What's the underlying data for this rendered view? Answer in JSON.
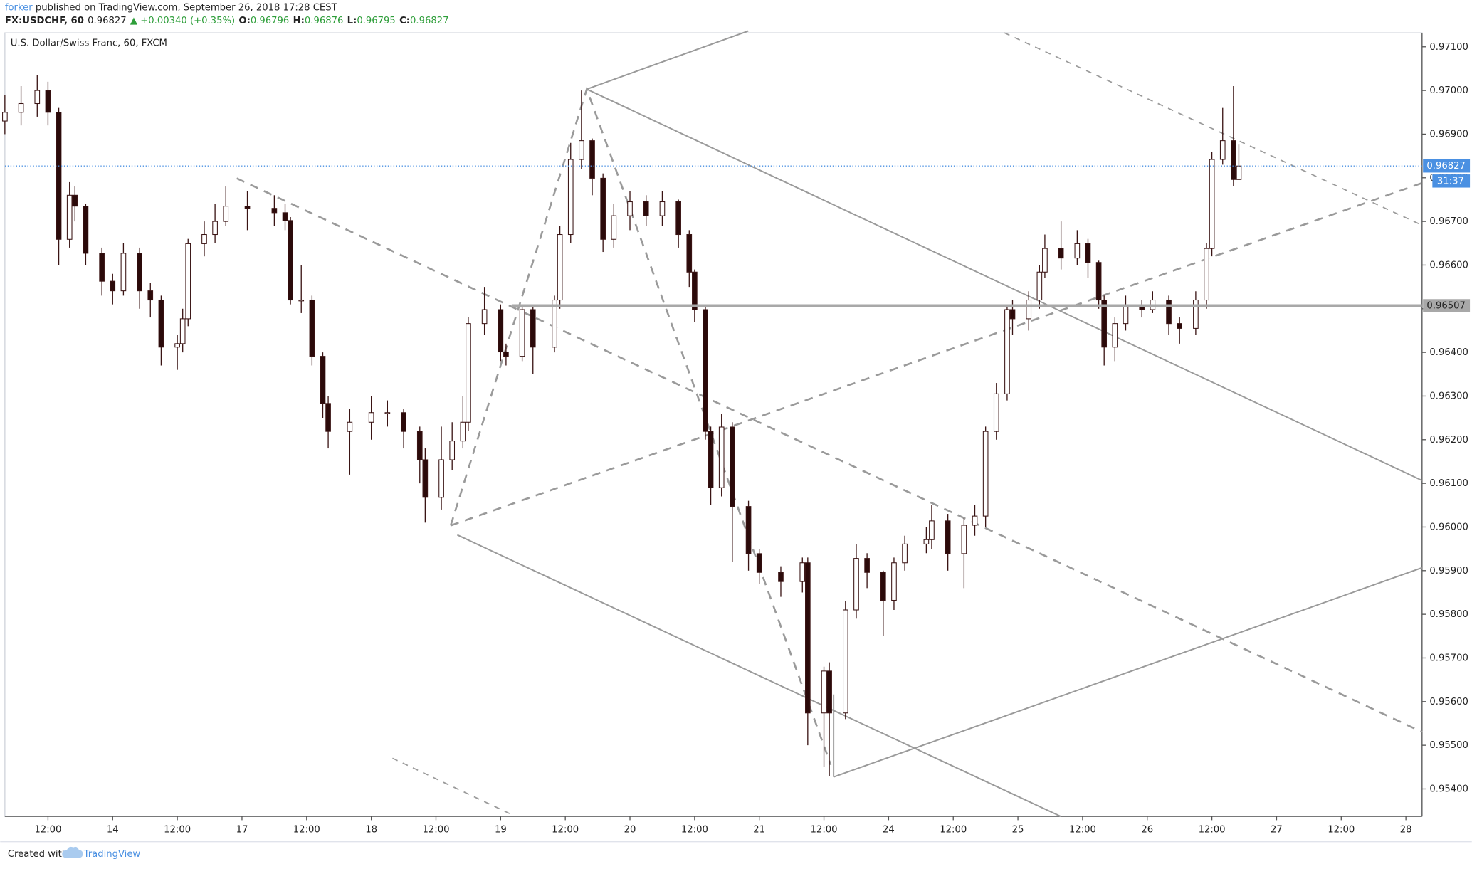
{
  "header": {
    "author": "forker",
    "published": " published on TradingView.com, September 26, 2018 17:28 CEST",
    "symbol": "FX:USDCHF, 60",
    "last": "0.96827",
    "change": "▲ +0.00340 (+0.35%)",
    "o_label": "O:",
    "o_value": "0.96796",
    "h_label": "H:",
    "h_value": "0.96876",
    "l_label": "L:",
    "l_value": "0.96795",
    "c_label": "C:",
    "c_value": "0.96827"
  },
  "footer": {
    "created": "Created with",
    "brand": "TradingView"
  },
  "chart_data": {
    "type": "candlestick",
    "title": "U.S. Dollar/Swiss Franc, 60, FXCM",
    "x": [
      4,
      7,
      10,
      12,
      14,
      16,
      17,
      19,
      22,
      24,
      26,
      29,
      31,
      33,
      36,
      37,
      38,
      41,
      43,
      45,
      49,
      54,
      56,
      57,
      59,
      61,
      63,
      64,
      68,
      72,
      75,
      78,
      81,
      82,
      85,
      87,
      89,
      90,
      93,
      96,
      97,
      100,
      102,
      106,
      107,
      109,
      111,
      113,
      115,
      117,
      120,
      123,
      126,
      129,
      131,
      132,
      134,
      135,
      137,
      139,
      142,
      144,
      148,
      152,
      153,
      156,
      157,
      160,
      162,
      164,
      167,
      169,
      171,
      175,
      176,
      179,
      182,
      184,
      186,
      188,
      190,
      191,
      194,
      196,
      197,
      200,
      203,
      205,
      207,
      208,
      210,
      212,
      215,
      217,
      220,
      222,
      225,
      227,
      228,
      230,
      232,
      233
    ],
    "open": [
      0.9693,
      0.9695,
      0.9697,
      0.97,
      0.9695,
      0.96659,
      0.9676,
      0.96735,
      0.96627,
      0.96563,
      0.96541,
      0.96627,
      0.96541,
      0.9652,
      0.96412,
      0.9642,
      0.96477,
      0.96649,
      0.9667,
      0.967,
      0.96735,
      0.9673,
      0.9672,
      0.96702,
      0.9652,
      0.9652,
      0.96391,
      0.96283,
      0.96219,
      0.9624,
      0.96262,
      0.96262,
      0.96219,
      0.96154,
      0.96068,
      0.96154,
      0.96197,
      0.9624,
      0.96466,
      0.96498,
      0.96401,
      0.96391,
      0.96498,
      0.96412,
      0.9652,
      0.9667,
      0.96842,
      0.96885,
      0.96799,
      0.96659,
      0.96713,
      0.96745,
      0.96713,
      0.96745,
      0.9667,
      0.96584,
      0.96498,
      0.96219,
      0.9609,
      0.96229,
      0.96047,
      0.95939,
      0.95896,
      0.95875,
      0.95918,
      0.95574,
      0.9567,
      0.95574,
      0.9581,
      0.95928,
      0.95896,
      0.95832,
      0.95918,
      0.95961,
      0.95971,
      0.96014,
      0.95939,
      0.96004,
      0.96025,
      0.96219,
      0.96305,
      0.96498,
      0.96477,
      0.9652,
      0.96584,
      0.96638,
      0.96616,
      0.96649,
      0.96606,
      0.9652,
      0.96412,
      0.96466,
      0.96509,
      0.96498,
      0.9652,
      0.96466,
      0.96455,
      0.9652,
      0.96638,
      0.96842,
      0.96885,
      0.96796
    ],
    "high": [
      0.9699,
      0.9701,
      0.97036,
      0.9702,
      0.9696,
      0.9679,
      0.9678,
      0.9674,
      0.9664,
      0.9658,
      0.9665,
      0.9664,
      0.9656,
      0.9653,
      0.9644,
      0.965,
      0.9666,
      0.967,
      0.9674,
      0.9678,
      0.9677,
      0.9676,
      0.9674,
      0.9671,
      0.966,
      0.9653,
      0.964,
      0.963,
      0.9627,
      0.963,
      0.9629,
      0.9627,
      0.9623,
      0.9618,
      0.9623,
      0.9624,
      0.963,
      0.9648,
      0.9655,
      0.9651,
      0.9642,
      0.9651,
      0.9651,
      0.9653,
      0.9669,
      0.9688,
      0.97,
      0.9689,
      0.9681,
      0.9674,
      0.9677,
      0.9676,
      0.9677,
      0.9675,
      0.9668,
      0.9659,
      0.9651,
      0.9623,
      0.9626,
      0.9624,
      0.9606,
      0.9595,
      0.9591,
      0.9593,
      0.9593,
      0.9568,
      0.9569,
      0.9583,
      0.9596,
      0.9594,
      0.959,
      0.9593,
      0.9598,
      0.96,
      0.9605,
      0.9603,
      0.9602,
      0.9605,
      0.9623,
      0.9633,
      0.9651,
      0.9652,
      0.9654,
      0.966,
      0.9667,
      0.967,
      0.9668,
      0.9666,
      0.9661,
      0.9653,
      0.9648,
      0.9653,
      0.9652,
      0.9654,
      0.9653,
      0.9648,
      0.9654,
      0.9665,
      0.9686,
      0.9696,
      0.9701,
      0.96876
    ],
    "low": [
      0.969,
      0.9692,
      0.9694,
      0.9692,
      0.966,
      0.9664,
      0.967,
      0.966,
      0.9653,
      0.9651,
      0.9653,
      0.965,
      0.9648,
      0.9637,
      0.9636,
      0.964,
      0.9646,
      0.9662,
      0.9665,
      0.9669,
      0.9668,
      0.9669,
      0.9668,
      0.9651,
      0.9649,
      0.9637,
      0.9625,
      0.9618,
      0.9612,
      0.962,
      0.9623,
      0.9618,
      0.961,
      0.9601,
      0.9604,
      0.9613,
      0.9618,
      0.9622,
      0.9644,
      0.9638,
      0.9637,
      0.9638,
      0.9635,
      0.964,
      0.965,
      0.9665,
      0.9682,
      0.9676,
      0.9663,
      0.9664,
      0.9668,
      0.9669,
      0.9669,
      0.9664,
      0.9655,
      0.9647,
      0.962,
      0.9605,
      0.9607,
      0.9592,
      0.959,
      0.9587,
      0.9584,
      0.9585,
      0.955,
      0.9545,
      0.9543,
      0.9556,
      0.9579,
      0.9586,
      0.9575,
      0.9581,
      0.959,
      0.9594,
      0.9595,
      0.959,
      0.9586,
      0.9598,
      0.96,
      0.962,
      0.9629,
      0.9644,
      0.9645,
      0.965,
      0.9657,
      0.9659,
      0.966,
      0.9657,
      0.965,
      0.9637,
      0.9638,
      0.9645,
      0.9648,
      0.9649,
      0.9644,
      0.9642,
      0.9644,
      0.965,
      0.9662,
      0.9683,
      0.9678,
      0.96795
    ],
    "close": [
      0.9695,
      0.9697,
      0.97,
      0.9695,
      0.96659,
      0.9676,
      0.96735,
      0.96627,
      0.96563,
      0.96541,
      0.96627,
      0.96541,
      0.9652,
      0.96412,
      0.9642,
      0.96477,
      0.96649,
      0.9667,
      0.967,
      0.96735,
      0.9673,
      0.9672,
      0.96702,
      0.9652,
      0.9652,
      0.96391,
      0.96283,
      0.96219,
      0.9624,
      0.96262,
      0.96262,
      0.96219,
      0.96154,
      0.96068,
      0.96154,
      0.96197,
      0.9624,
      0.96466,
      0.96498,
      0.96401,
      0.96391,
      0.96498,
      0.96412,
      0.9652,
      0.9667,
      0.96842,
      0.96885,
      0.96799,
      0.96659,
      0.96713,
      0.96745,
      0.96713,
      0.96745,
      0.9667,
      0.96584,
      0.96498,
      0.96219,
      0.9609,
      0.96229,
      0.96047,
      0.95939,
      0.95896,
      0.95875,
      0.95918,
      0.95574,
      0.9567,
      0.95574,
      0.9581,
      0.95928,
      0.95896,
      0.95832,
      0.95918,
      0.95961,
      0.95971,
      0.96014,
      0.95939,
      0.96004,
      0.96025,
      0.96219,
      0.96305,
      0.96498,
      0.96477,
      0.9652,
      0.96584,
      0.96638,
      0.96616,
      0.96649,
      0.96606,
      0.9652,
      0.96412,
      0.96466,
      0.96509,
      0.96498,
      0.9652,
      0.96466,
      0.96455,
      0.9652,
      0.96638,
      0.96842,
      0.96885,
      0.96796,
      0.96827
    ],
    "up_color": "#ffffff",
    "down_color": "#2b0a0a",
    "outline_color": "#3a1414",
    "xlim": [
      4,
      267
    ],
    "xticks": [
      {
        "value": 12,
        "label": "12:00"
      },
      {
        "value": 24,
        "label": "14"
      },
      {
        "value": 36,
        "label": "12:00"
      },
      {
        "value": 48,
        "label": "17"
      },
      {
        "value": 60,
        "label": "12:00"
      },
      {
        "value": 72,
        "label": "18"
      },
      {
        "value": 84,
        "label": "12:00"
      },
      {
        "value": 96,
        "label": "19"
      },
      {
        "value": 108,
        "label": "12:00"
      },
      {
        "value": 120,
        "label": "20"
      },
      {
        "value": 132,
        "label": "12:00"
      },
      {
        "value": 144,
        "label": "21"
      },
      {
        "value": 156,
        "label": "12:00"
      },
      {
        "value": 168,
        "label": "24"
      },
      {
        "value": 180,
        "label": "12:00"
      },
      {
        "value": 192,
        "label": "25"
      },
      {
        "value": 204,
        "label": "12:00"
      },
      {
        "value": 216,
        "label": "26"
      },
      {
        "value": 228,
        "label": "12:00"
      },
      {
        "value": 240,
        "label": "27"
      },
      {
        "value": 252,
        "label": "12:00"
      },
      {
        "value": 264,
        "label": "28"
      }
    ],
    "ylim": [
      0.95337,
      0.97132
    ],
    "yticks": [
      {
        "value": 0.954,
        "label": "0.95400"
      },
      {
        "value": 0.955,
        "label": "0.95500"
      },
      {
        "value": 0.956,
        "label": "0.95600"
      },
      {
        "value": 0.957,
        "label": "0.95700"
      },
      {
        "value": 0.958,
        "label": "0.95800"
      },
      {
        "value": 0.959,
        "label": "0.95900"
      },
      {
        "value": 0.96,
        "label": "0.96000"
      },
      {
        "value": 0.961,
        "label": "0.96100"
      },
      {
        "value": 0.962,
        "label": "0.96200"
      },
      {
        "value": 0.963,
        "label": "0.96300"
      },
      {
        "value": 0.964,
        "label": "0.96400"
      },
      {
        "value": 0.965,
        "label": "0.96500"
      },
      {
        "value": 0.966,
        "label": "0.96600"
      },
      {
        "value": 0.967,
        "label": "0.96700"
      },
      {
        "value": 0.968,
        "label": "0.96800"
      },
      {
        "value": 0.969,
        "label": "0.96900"
      },
      {
        "value": 0.97,
        "label": "0.97000"
      },
      {
        "value": 0.971,
        "label": "0.97100"
      }
    ],
    "price_lines": [
      {
        "value": 0.96827,
        "label": "0.96827",
        "color": "#4a90e2",
        "style": "dotted"
      },
      {
        "value": 0.96507,
        "label": "0.96507",
        "color": "#a8a8a8",
        "style": "solid"
      }
    ],
    "countdown": "31:37"
  }
}
